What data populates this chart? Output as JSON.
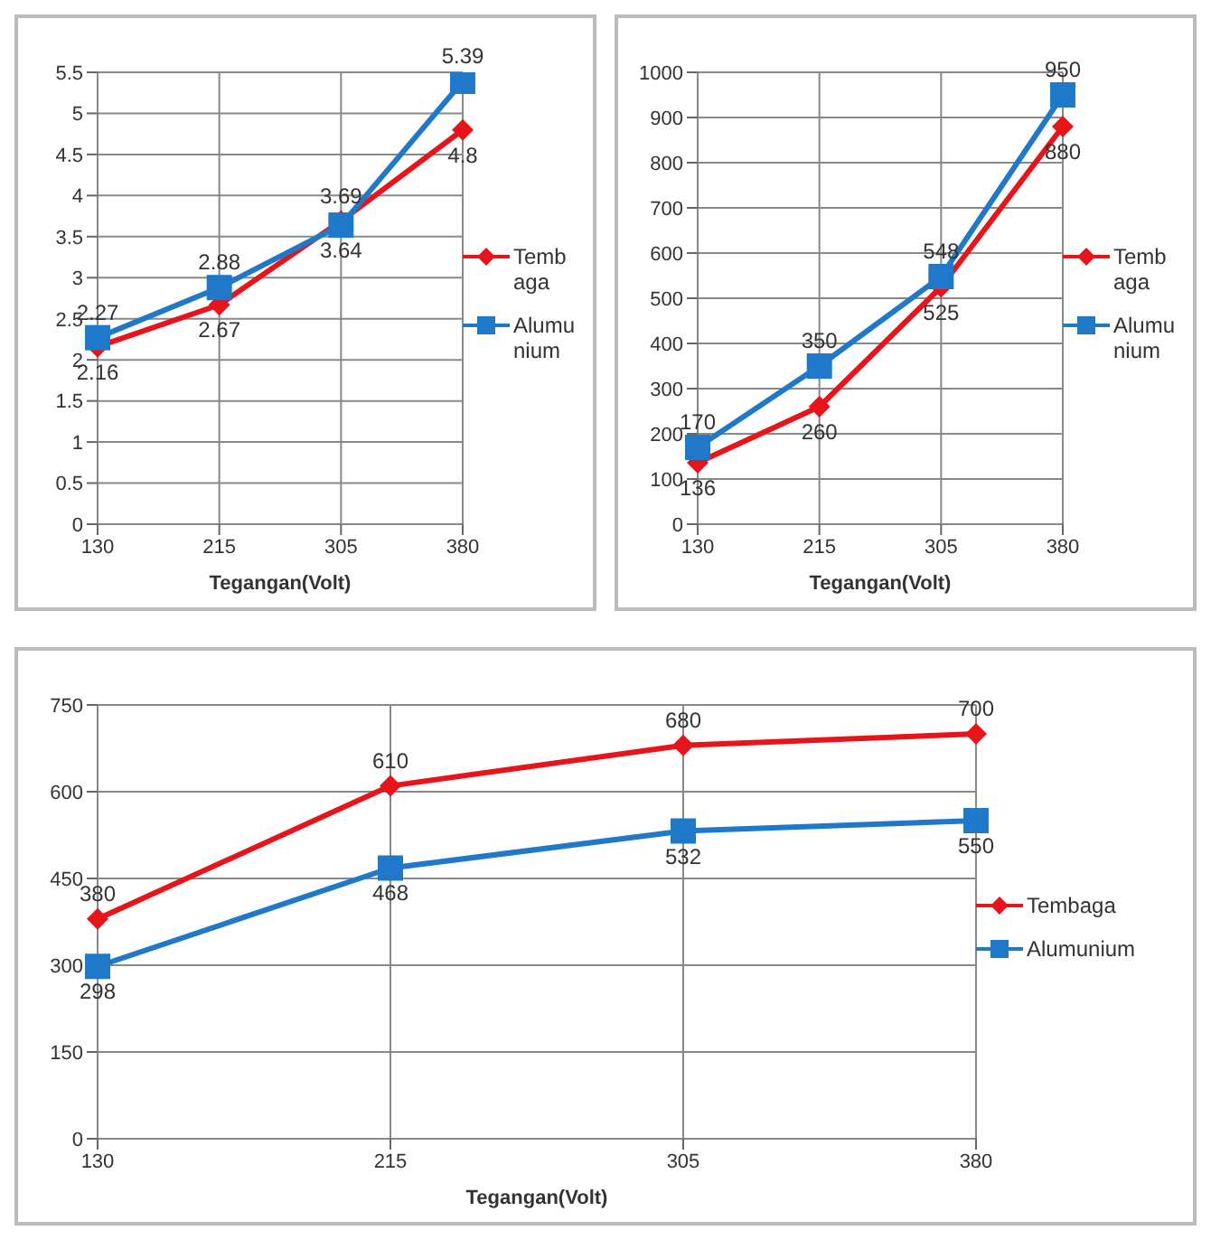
{
  "chart_data": [
    {
      "type": "line",
      "xlabel": "Tegangan(Volt)",
      "categories": [
        "130",
        "215",
        "305",
        "380"
      ],
      "ylim": [
        0,
        5.5
      ],
      "yticks": [
        0,
        0.5,
        1,
        1.5,
        2,
        2.5,
        3,
        3.5,
        4,
        4.5,
        5,
        5.5
      ],
      "grid": true,
      "legend": "right",
      "data_labels": true,
      "series": [
        {
          "name": "Tembaga",
          "color": "#e8141b",
          "marker": "diamond",
          "values": [
            2.16,
            2.67,
            3.69,
            4.8
          ]
        },
        {
          "name": "Alumunium",
          "color": "#1f78c8",
          "marker": "square",
          "values": [
            2.27,
            2.88,
            3.64,
            5.39
          ]
        }
      ]
    },
    {
      "type": "line",
      "xlabel": "Tegangan(Volt)",
      "categories": [
        "130",
        "215",
        "305",
        "380"
      ],
      "ylim": [
        0,
        1000
      ],
      "yticks": [
        0,
        100,
        200,
        300,
        400,
        500,
        600,
        700,
        800,
        900,
        1000
      ],
      "grid": true,
      "legend": "right",
      "data_labels": true,
      "series": [
        {
          "name": "Tembaga",
          "color": "#e8141b",
          "marker": "diamond",
          "values": [
            136,
            260,
            525,
            880
          ]
        },
        {
          "name": "Alumunium",
          "color": "#1f78c8",
          "marker": "square",
          "values": [
            170,
            350,
            548,
            950
          ]
        }
      ]
    },
    {
      "type": "line",
      "xlabel": "Tegangan(Volt)",
      "categories": [
        "130",
        "215",
        "305",
        "380"
      ],
      "ylim": [
        0,
        750
      ],
      "yticks": [
        0,
        150,
        300,
        450,
        600,
        750
      ],
      "grid": true,
      "legend": "right",
      "data_labels": true,
      "series": [
        {
          "name": "Tembaga",
          "color": "#e8141b",
          "marker": "diamond",
          "values": [
            380,
            610,
            680,
            700
          ]
        },
        {
          "name": "Alumunium",
          "color": "#1f78c8",
          "marker": "square",
          "values": [
            298,
            468,
            532,
            550
          ]
        }
      ]
    }
  ]
}
